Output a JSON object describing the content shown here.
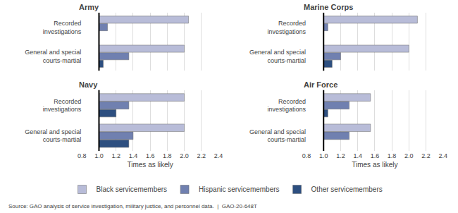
{
  "chart_data": [
    {
      "type": "bar",
      "orientation": "horizontal",
      "title": "Army",
      "categories": [
        "Recorded\ninvestigations",
        "General and special\ncourts-martial"
      ],
      "base": 1.0,
      "series": [
        {
          "name": "Black servicemembers",
          "color": "#b8bcd8",
          "values": [
            2.05,
            2.0
          ]
        },
        {
          "name": "Hispanic servicemembers",
          "color": "#7080b0",
          "values": [
            1.1,
            1.35
          ]
        },
        {
          "name": "Other servicemembers",
          "color": "#2d4f80",
          "values": [
            1.0,
            1.05
          ]
        }
      ],
      "xlim": [
        0.8,
        2.4
      ],
      "xticks": [
        0.8,
        {
          "value": 1.0,
          "label": "1.0"
        },
        1.2,
        1.4,
        1.6,
        1.8,
        {
          "value": 2.0,
          "label": "2.0"
        },
        2.2,
        2.4
      ],
      "grid": true,
      "tick_labels": "y",
      "legend": "bottom",
      "annotations": [
        "Source: GAO analysis of service investigation, military justice, and personnel data.  |  GAO-20-648T"
      ]
    },
    {
      "type": "bar",
      "orientation": "horizontal",
      "title": "Navy",
      "categories": [
        "Recorded\ninvestigations",
        "General and special\ncourts-martial"
      ],
      "base": 1.0,
      "series": [
        {
          "name": "Black servicemembers",
          "color": "#b8bcd8",
          "values": [
            2.0,
            2.0
          ]
        },
        {
          "name": "Hispanic servicemembers",
          "color": "#7080b0",
          "values": [
            1.35,
            1.4
          ]
        },
        {
          "name": "Other servicemembers",
          "color": "#2d4f80",
          "values": [
            1.2,
            1.35
          ]
        }
      ],
      "xlim": [
        0.8,
        2.4
      ],
      "xticks": [
        0.8,
        {
          "value": 1.0,
          "label": "1.0"
        },
        1.2,
        1.4,
        1.6,
        1.8,
        {
          "value": 2.0,
          "label": "2.0"
        },
        2.2,
        2.4
      ],
      "xlabel": "Times as likely",
      "grid": true
    },
    {
      "type": "bar",
      "orientation": "horizontal",
      "title": "Marine Corps",
      "categories": [
        "Recorded\ninvestigations",
        "General and special\ncourts-martial"
      ],
      "base": 1.0,
      "series": [
        {
          "name": "Black servicemembers",
          "color": "#b8bcd8",
          "values": [
            2.1,
            2.0
          ]
        },
        {
          "name": "Hispanic servicemembers",
          "color": "#7080b0",
          "values": [
            1.05,
            1.2
          ]
        },
        {
          "name": "Other servicemembers",
          "color": "#2d4f80",
          "values": [
            1.0,
            1.1
          ]
        }
      ],
      "xlim": [
        0.8,
        2.4
      ],
      "xticks": [
        0.8,
        {
          "value": 1.0,
          "label": "1.0"
        },
        1.2,
        1.4,
        1.6,
        1.8,
        {
          "value": 2.0,
          "label": "2.0"
        },
        2.2,
        2.4
      ],
      "grid": true,
      "tick_labels": "y"
    },
    {
      "type": "bar",
      "orientation": "horizontal",
      "title": "Air Force",
      "categories": [
        "Recorded\ninvestigations",
        "General and special\ncourts-martial"
      ],
      "base": 1.0,
      "series": [
        {
          "name": "Black servicemembers",
          "color": "#b8bcd8",
          "values": [
            1.55,
            1.55
          ]
        },
        {
          "name": "Hispanic servicemembers",
          "color": "#7080b0",
          "values": [
            1.3,
            1.3
          ]
        },
        {
          "name": "Other servicemembers",
          "color": "#2d4f80",
          "values": [
            1.05,
            null
          ]
        }
      ],
      "xlim": [
        0.8,
        2.4
      ],
      "xticks": [
        0.8,
        {
          "value": 1.0,
          "label": "1.0"
        },
        1.2,
        1.4,
        1.6,
        1.8,
        {
          "value": 2.0,
          "label": "2.0"
        },
        2.2,
        2.4
      ],
      "xlabel": "Times as likely",
      "grid": true
    }
  ]
}
